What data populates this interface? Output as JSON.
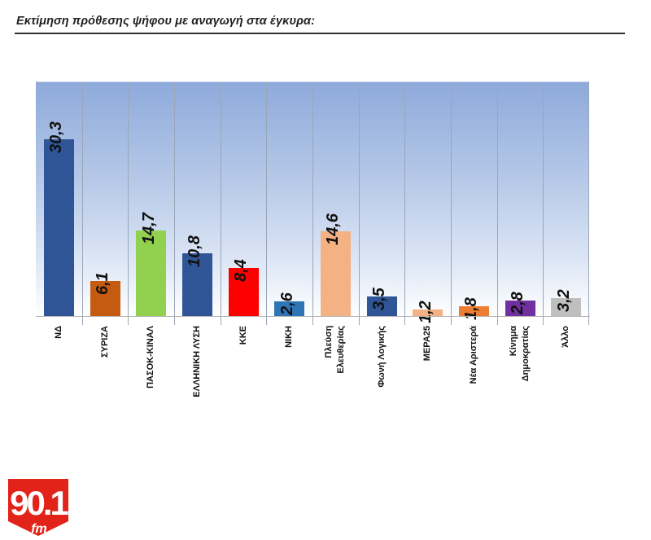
{
  "header": {
    "title": "Εκτίμηση πρόθεσης ψήφου με αναγωγή στα έγκυρα:"
  },
  "logo": {
    "main": "90.1",
    "sub": "fm",
    "color": "#e2231a"
  },
  "chart_data": {
    "type": "bar",
    "title": "Εκτίμηση πρόθεσης ψήφου με αναγωγή στα έγκυρα:",
    "xlabel": "",
    "ylabel": "",
    "ylim": [
      0,
      40
    ],
    "grid": "vertical category separators",
    "legend": "none",
    "value_labels": true,
    "categories": [
      "ΝΔ",
      "ΣΥΡΙΖΑ",
      "ΠΑΣΟΚ-ΚΙΝΑΛ",
      "ΕΛΛΗΝΙΚΗ ΛΥΣΗ",
      "ΚΚΕ",
      "ΝΙΚΗ",
      "Πλεύση Ελευθερίας",
      "Φωνή Λογικής",
      "ΜΕΡΑ25",
      "Νέα Αριστερά",
      "Κίνημα Δημοκρατίας",
      "Άλλο"
    ],
    "values": [
      30.3,
      6.1,
      14.7,
      10.8,
      8.4,
      2.6,
      14.6,
      3.5,
      1.2,
      1.8,
      2.8,
      3.2
    ],
    "value_labels_text": [
      "30,3",
      "6,1",
      "14,7",
      "10,8",
      "8,4",
      "2,6",
      "14,6",
      "3,5",
      "1,2",
      "1,8",
      "2,8",
      "3,2"
    ],
    "colors": [
      "#2f5597",
      "#c55a11",
      "#92d050",
      "#2f5597",
      "#ff0000",
      "#2e75b6",
      "#f4b183",
      "#2f5597",
      "#f4b183",
      "#ed7d31",
      "#7030a0",
      "#bfbfbf"
    ]
  },
  "bars": [
    {
      "label": "ΝΔ",
      "text": "30,3"
    },
    {
      "label": "ΣΥΡΙΖΑ",
      "text": "6,1"
    },
    {
      "label": "ΠΑΣΟΚ-ΚΙΝΑΛ",
      "text": "14,7"
    },
    {
      "label": "ΕΛΛΗΝΙΚΗ ΛΥΣΗ",
      "text": "10,8"
    },
    {
      "label": "ΚΚΕ",
      "text": "8,4"
    },
    {
      "label": "ΝΙΚΗ",
      "text": "2,6"
    },
    {
      "label": "Πλεύση\nΕλευθερίας",
      "text": "14,6"
    },
    {
      "label": "Φωνή Λογικής",
      "text": "3,5"
    },
    {
      "label": "ΜΕΡΑ25",
      "text": "1,2"
    },
    {
      "label": "Νέα Αριστερά",
      "text": "1,8"
    },
    {
      "label": "Κίνημα\nΔημοκρατίας",
      "text": "2,8"
    },
    {
      "label": "Άλλο",
      "text": "3,2"
    }
  ]
}
